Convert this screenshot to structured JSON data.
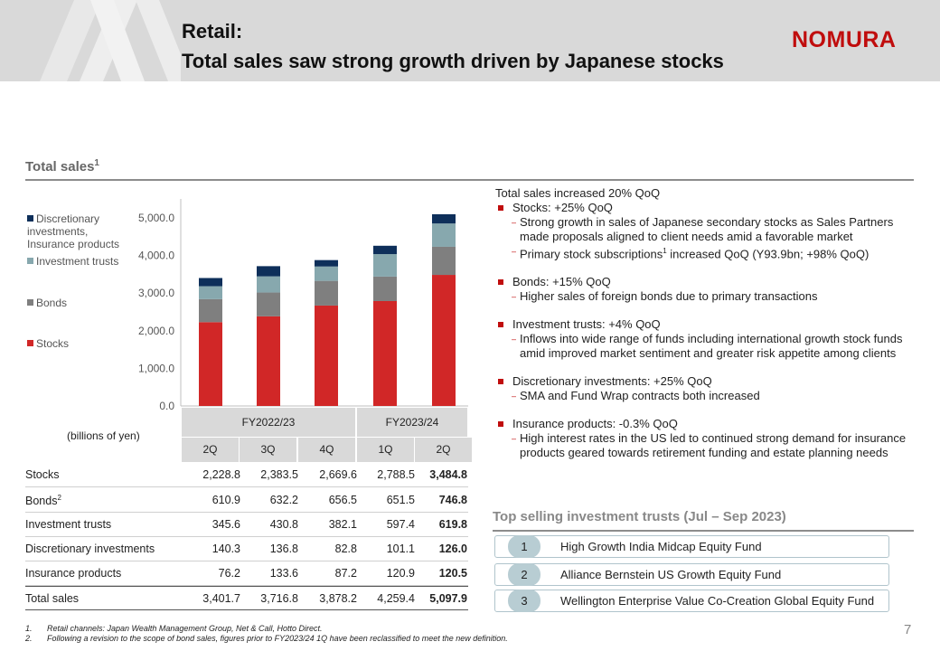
{
  "header": {
    "title_line1": "Retail:",
    "title_line2": "Total sales saw strong growth driven by Japanese stocks",
    "logo": "NOMURA"
  },
  "section_title": "Total sales",
  "section_title_sup": "1",
  "chart_data": {
    "type": "bar",
    "stacked": true,
    "categories": [
      "2Q",
      "3Q",
      "4Q",
      "1Q",
      "2Q"
    ],
    "fiscal_groups": [
      {
        "label": "FY2022/23",
        "span": 3
      },
      {
        "label": "FY2023/24",
        "span": 2
      }
    ],
    "ylim": [
      0,
      5000
    ],
    "yticks": [
      "0.0",
      "1,000.0",
      "2,000.0",
      "3,000.0",
      "4,000.0",
      "5,000.0"
    ],
    "units": "(billions of yen)",
    "series": [
      {
        "name": "Stocks",
        "color": "#d12727",
        "values": [
          2228.8,
          2383.5,
          2669.6,
          2788.5,
          3484.8
        ]
      },
      {
        "name": "Bonds",
        "color": "#7f7f7f",
        "values": [
          610.9,
          632.2,
          656.5,
          651.5,
          746.8
        ]
      },
      {
        "name": "Investment trusts",
        "color": "#87a8ae",
        "values": [
          345.6,
          430.8,
          382.1,
          597.4,
          619.8
        ]
      },
      {
        "name": "Discretionary investments, Insurance products",
        "color": "#0e2f5a",
        "values": [
          216.5,
          270.4,
          170.0,
          222.0,
          246.5
        ]
      }
    ],
    "legend": [
      "Discretionary investments, Insurance products",
      "Investment trusts",
      "Bonds",
      "Stocks"
    ],
    "legend_placement": "left"
  },
  "table": {
    "rows": [
      {
        "label": "Stocks",
        "sup": "",
        "values": [
          "2,228.8",
          "2,383.5",
          "2,669.6",
          "2,788.5",
          "3,484.8"
        ]
      },
      {
        "label": "Bonds",
        "sup": "2",
        "values": [
          "610.9",
          "632.2",
          "656.5",
          "651.5",
          "746.8"
        ]
      },
      {
        "label": "Investment trusts",
        "sup": "",
        "values": [
          "345.6",
          "430.8",
          "382.1",
          "597.4",
          "619.8"
        ]
      },
      {
        "label": "Discretionary investments",
        "sup": "",
        "values": [
          "140.3",
          "136.8",
          "82.8",
          "101.1",
          "126.0"
        ]
      },
      {
        "label": "Insurance products",
        "sup": "",
        "values": [
          "76.2",
          "133.6",
          "87.2",
          "120.9",
          "120.5"
        ]
      },
      {
        "label": "Total sales",
        "sup": "",
        "values": [
          "3,401.7",
          "3,716.8",
          "3,878.2",
          "4,259.4",
          "5,097.9"
        ],
        "total": true
      }
    ]
  },
  "bullets": {
    "headline": "Total sales increased 20% QoQ",
    "items": [
      {
        "text": "Stocks: +25% QoQ",
        "subs": [
          "Strong growth in sales of Japanese secondary stocks as Sales Partners made proposals aligned to client needs amid a favorable market",
          "Primary stock subscriptions|1| increased QoQ (Y93.9bn; +98% QoQ)"
        ]
      },
      {
        "text": "Bonds: +15% QoQ",
        "subs": [
          "Higher sales of foreign bonds due to primary transactions"
        ]
      },
      {
        "text": "Investment trusts: +4% QoQ",
        "subs": [
          "Inflows into wide range of funds including international growth stock funds amid improved market sentiment and greater risk appetite among clients"
        ]
      },
      {
        "text": "Discretionary investments: +25% QoQ",
        "subs": [
          "SMA and Fund Wrap contracts both increased"
        ]
      },
      {
        "text": "Insurance products: -0.3% QoQ",
        "subs": [
          "High interest rates in the US led to continued strong demand for insurance products geared towards retirement funding and estate planning needs"
        ]
      }
    ]
  },
  "funds": {
    "title": "Top selling investment trusts (Jul – Sep 2023)",
    "items": [
      {
        "rank": "1",
        "name": "High Growth India Midcap Equity Fund"
      },
      {
        "rank": "2",
        "name": "Alliance Bernstein US Growth Equity Fund"
      },
      {
        "rank": "3",
        "name": "Wellington Enterprise Value Co-Creation Global Equity Fund"
      }
    ]
  },
  "footnotes": [
    {
      "n": "1.",
      "text": "Retail channels: Japan Wealth Management Group, Net & Call, Hotto Direct."
    },
    {
      "n": "2.",
      "text": "Following a revision to the scope of bond sales, figures prior to FY2023/24 1Q have been reclassified to meet the new definition."
    }
  ],
  "page_number": "7",
  "colors": {
    "accent_red": "#c00d0d",
    "header_gray": "#d9d9d9",
    "fund_badge": "#b8cdd3"
  }
}
